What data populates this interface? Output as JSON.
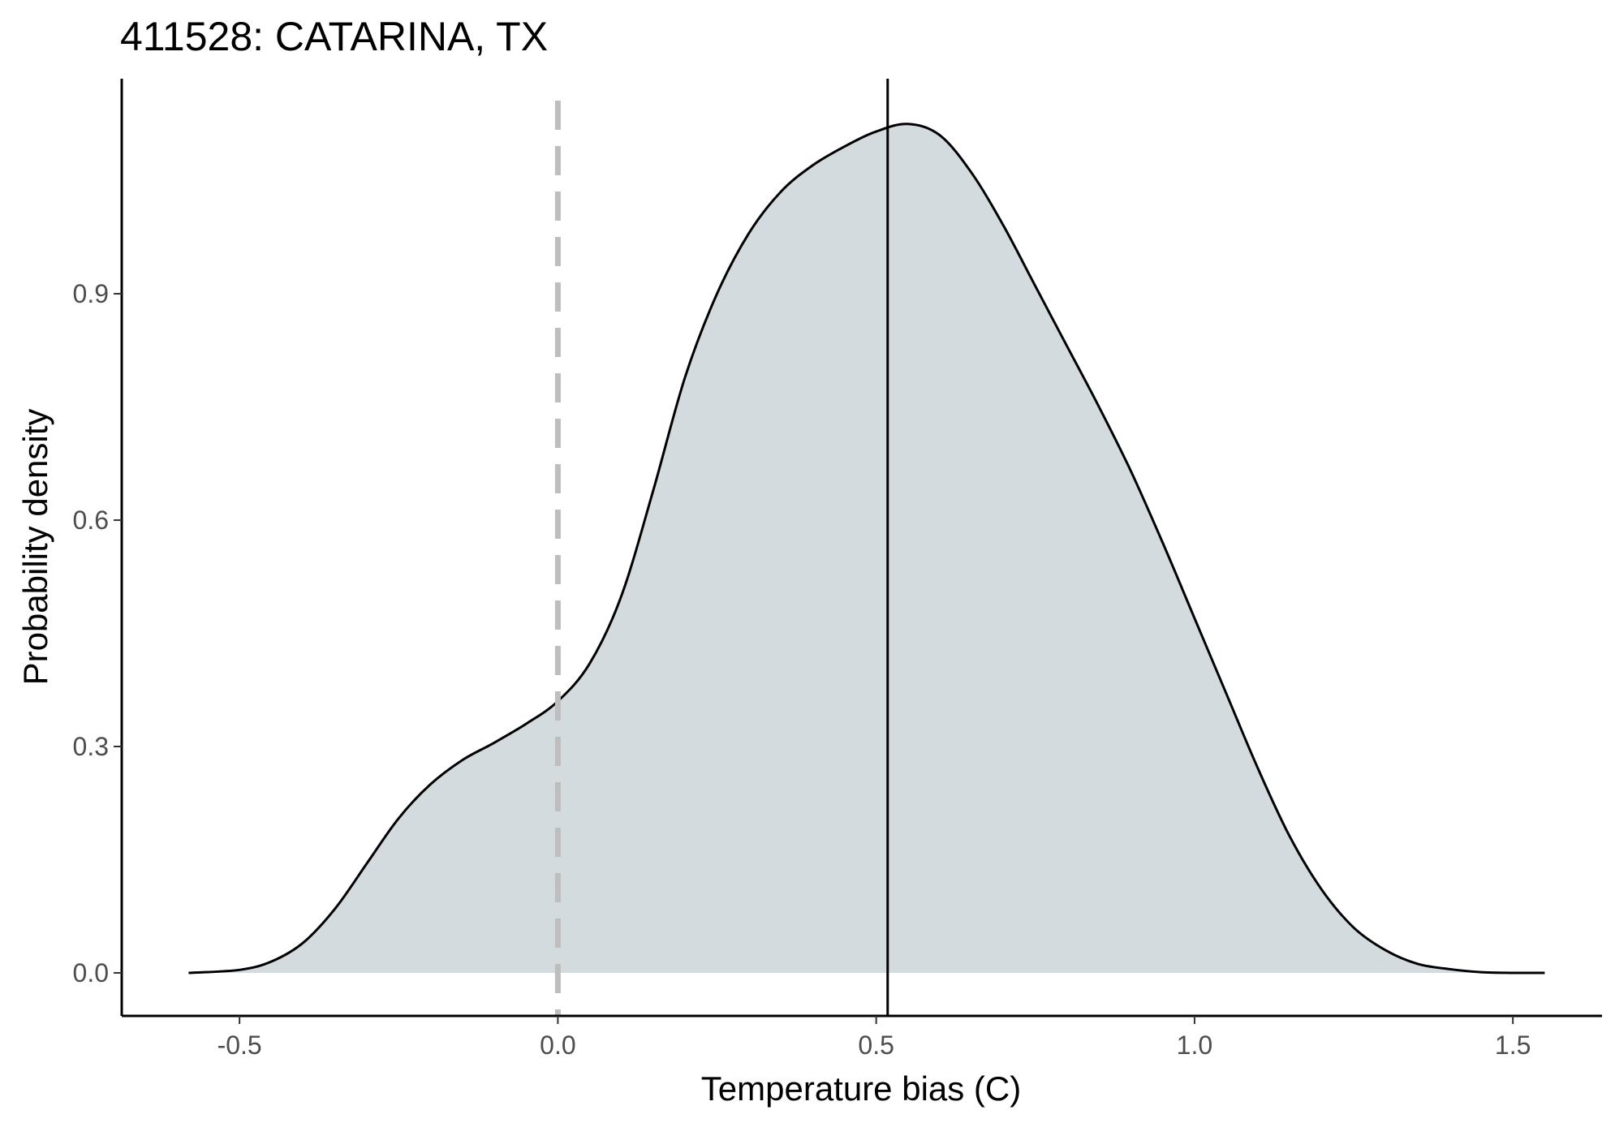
{
  "chart_data": {
    "type": "area",
    "title": "411528: CATARINA, TX",
    "xlabel": "Temperature bias (C)",
    "ylabel": "Probability density",
    "xlim": [
      -0.685,
      1.64
    ],
    "ylim": [
      -0.057,
      1.185
    ],
    "x_ticks": [
      -0.5,
      0.0,
      0.5,
      1.0,
      1.5
    ],
    "x_tick_labels": [
      "-0.5",
      "0.0",
      "0.5",
      "1.0",
      "1.5"
    ],
    "y_ticks": [
      0.0,
      0.3,
      0.6,
      0.9
    ],
    "y_tick_labels": [
      "0.0",
      "0.3",
      "0.6",
      "0.9"
    ],
    "grid": false,
    "legend": "none",
    "fill_color": "#d3dbdf",
    "line_color": "#000000",
    "reference_lines": [
      {
        "x": 0.0,
        "style": "dashed",
        "color": "#bebebe"
      },
      {
        "x": 0.518,
        "style": "solid",
        "color": "#000000"
      }
    ],
    "series": [
      {
        "x": [
          -0.58,
          -0.5,
          -0.45,
          -0.4,
          -0.35,
          -0.3,
          -0.25,
          -0.2,
          -0.15,
          -0.1,
          -0.05,
          0.0,
          0.05,
          0.1,
          0.15,
          0.2,
          0.25,
          0.3,
          0.35,
          0.4,
          0.45,
          0.5,
          0.55,
          0.6,
          0.65,
          0.7,
          0.75,
          0.8,
          0.85,
          0.9,
          0.95,
          1.0,
          1.05,
          1.1,
          1.15,
          1.2,
          1.25,
          1.3,
          1.35,
          1.4,
          1.45,
          1.5,
          1.55
        ],
        "y": [
          0.0,
          0.004,
          0.015,
          0.04,
          0.085,
          0.145,
          0.205,
          0.25,
          0.282,
          0.305,
          0.33,
          0.36,
          0.41,
          0.5,
          0.64,
          0.79,
          0.9,
          0.98,
          1.035,
          1.07,
          1.095,
          1.115,
          1.125,
          1.11,
          1.06,
          0.99,
          0.91,
          0.83,
          0.75,
          0.665,
          0.57,
          0.47,
          0.37,
          0.27,
          0.18,
          0.11,
          0.06,
          0.03,
          0.012,
          0.005,
          0.001,
          0.0,
          0.0
        ]
      }
    ]
  }
}
